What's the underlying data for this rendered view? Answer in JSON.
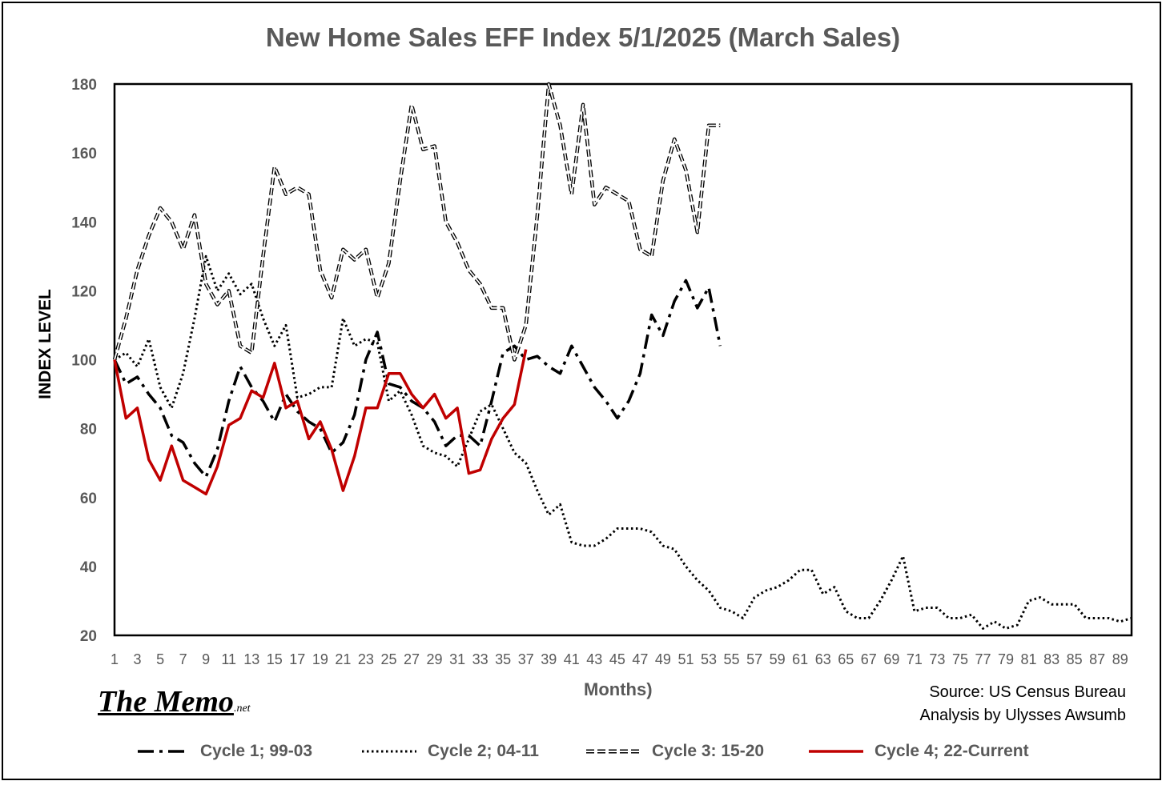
{
  "chart_data": {
    "type": "line",
    "title": "New Home  Sales  EFF Index 5/1/2025 (March Sales)",
    "xlabel": "Months)",
    "ylabel": "INDEX LEVEL",
    "ylim": [
      20,
      180
    ],
    "yticks": [
      20,
      40,
      60,
      80,
      100,
      120,
      140,
      160,
      180
    ],
    "xlim": [
      1,
      90
    ],
    "xticks": [
      1,
      3,
      5,
      7,
      9,
      11,
      13,
      15,
      17,
      19,
      21,
      23,
      25,
      27,
      29,
      31,
      33,
      35,
      37,
      39,
      41,
      43,
      45,
      47,
      49,
      51,
      53,
      55,
      57,
      59,
      61,
      63,
      65,
      67,
      69,
      71,
      73,
      75,
      77,
      79,
      81,
      83,
      85,
      87,
      89
    ],
    "grid": false,
    "legend_position": "bottom",
    "series": [
      {
        "name": "Cycle 1; 99-03",
        "color": "#000000",
        "dash": "dashdot",
        "x": [
          1,
          2,
          3,
          4,
          5,
          6,
          7,
          8,
          9,
          10,
          11,
          12,
          13,
          14,
          15,
          16,
          17,
          18,
          19,
          20,
          21,
          22,
          23,
          24,
          25,
          26,
          27,
          28,
          29,
          30,
          31,
          32,
          33,
          34,
          35,
          36,
          37,
          38,
          39,
          40,
          41,
          42,
          43,
          44,
          45,
          46,
          47,
          48,
          49,
          50,
          51,
          52,
          53,
          54
        ],
        "values": [
          100,
          93,
          95,
          90,
          86,
          78,
          76,
          70,
          66,
          74,
          88,
          98,
          92,
          88,
          82,
          90,
          85,
          82,
          80,
          73,
          76,
          84,
          100,
          108,
          93,
          92,
          88,
          86,
          82,
          75,
          78,
          78,
          75,
          88,
          102,
          104,
          100,
          101,
          98,
          96,
          104,
          98,
          92,
          88,
          83,
          88,
          96,
          113,
          107,
          117,
          123,
          115,
          121,
          104
        ]
      },
      {
        "name": "Cycle 2; 04-11",
        "color": "#000000",
        "dash": "dotted",
        "x": [
          1,
          2,
          3,
          4,
          5,
          6,
          7,
          8,
          9,
          10,
          11,
          12,
          13,
          14,
          15,
          16,
          17,
          18,
          19,
          20,
          21,
          22,
          23,
          24,
          25,
          26,
          27,
          28,
          29,
          30,
          31,
          32,
          33,
          34,
          35,
          36,
          37,
          38,
          39,
          40,
          41,
          42,
          43,
          44,
          45,
          46,
          47,
          48,
          49,
          50,
          51,
          52,
          53,
          54,
          55,
          56,
          57,
          58,
          59,
          60,
          61,
          62,
          63,
          64,
          65,
          66,
          67,
          68,
          69,
          70,
          71,
          72,
          73,
          74,
          75,
          76,
          77,
          78,
          79,
          80,
          81,
          82,
          83,
          84,
          85,
          86,
          87,
          88,
          89,
          90
        ],
        "values": [
          100,
          102,
          98,
          106,
          92,
          86,
          96,
          112,
          130,
          120,
          125,
          119,
          122,
          112,
          104,
          110,
          89,
          90,
          92,
          92,
          112,
          104,
          106,
          105,
          88,
          91,
          84,
          75,
          73,
          72,
          69,
          77,
          85,
          87,
          80,
          73,
          70,
          62,
          55,
          58,
          47,
          46,
          46,
          48,
          51,
          51,
          51,
          50,
          46,
          45,
          40,
          36,
          33,
          28,
          27,
          25,
          31,
          33,
          34,
          36,
          39,
          39,
          32,
          34,
          27,
          25,
          25,
          30,
          36,
          43,
          27,
          28,
          28,
          25,
          25,
          26,
          22,
          24,
          22,
          23,
          30,
          31,
          29,
          29,
          29,
          25,
          25,
          25,
          24,
          25
        ]
      },
      {
        "name": "Cycle 3: 15-20",
        "color": "#000000",
        "dash": "double",
        "x": [
          1,
          2,
          3,
          4,
          5,
          6,
          7,
          8,
          9,
          10,
          11,
          12,
          13,
          14,
          15,
          16,
          17,
          18,
          19,
          20,
          21,
          22,
          23,
          24,
          25,
          26,
          27,
          28,
          29,
          30,
          31,
          32,
          33,
          34,
          35,
          36,
          37,
          38,
          39,
          40,
          41,
          42,
          43,
          44,
          45,
          46,
          47,
          48,
          49,
          50,
          51,
          52,
          53,
          54
        ],
        "values": [
          100,
          112,
          126,
          136,
          144,
          140,
          132,
          142,
          122,
          116,
          120,
          104,
          102,
          130,
          156,
          148,
          150,
          148,
          126,
          118,
          132,
          129,
          132,
          118,
          128,
          152,
          174,
          161,
          162,
          140,
          134,
          126,
          122,
          115,
          115,
          100,
          110,
          142,
          180,
          168,
          148,
          174,
          145,
          150,
          148,
          146,
          132,
          130,
          152,
          164,
          155,
          137,
          168,
          168
        ]
      },
      {
        "name": "Cycle 4; 22-Current",
        "color": "#c00000",
        "dash": "solid",
        "x": [
          1,
          2,
          3,
          4,
          5,
          6,
          7,
          8,
          9,
          10,
          11,
          12,
          13,
          14,
          15,
          16,
          17,
          18,
          19,
          20,
          21,
          22,
          23,
          24,
          25,
          26,
          27,
          28,
          29,
          30,
          31,
          32,
          33,
          34,
          35,
          36,
          37
        ],
        "values": [
          100,
          83,
          86,
          71,
          65,
          75,
          65,
          63,
          61,
          69,
          81,
          83,
          91,
          89,
          99,
          86,
          88,
          77,
          82,
          74,
          62,
          72,
          86,
          86,
          96,
          96,
          90,
          86,
          90,
          83,
          86,
          67,
          68,
          77,
          83,
          87,
          103
        ]
      }
    ]
  },
  "branding": {
    "logo_main": "The Memo",
    "logo_sub": ".net"
  },
  "source": {
    "line1": "Source: US Census Bureau",
    "line2": "Analysis by Ulysses Awsumb"
  }
}
